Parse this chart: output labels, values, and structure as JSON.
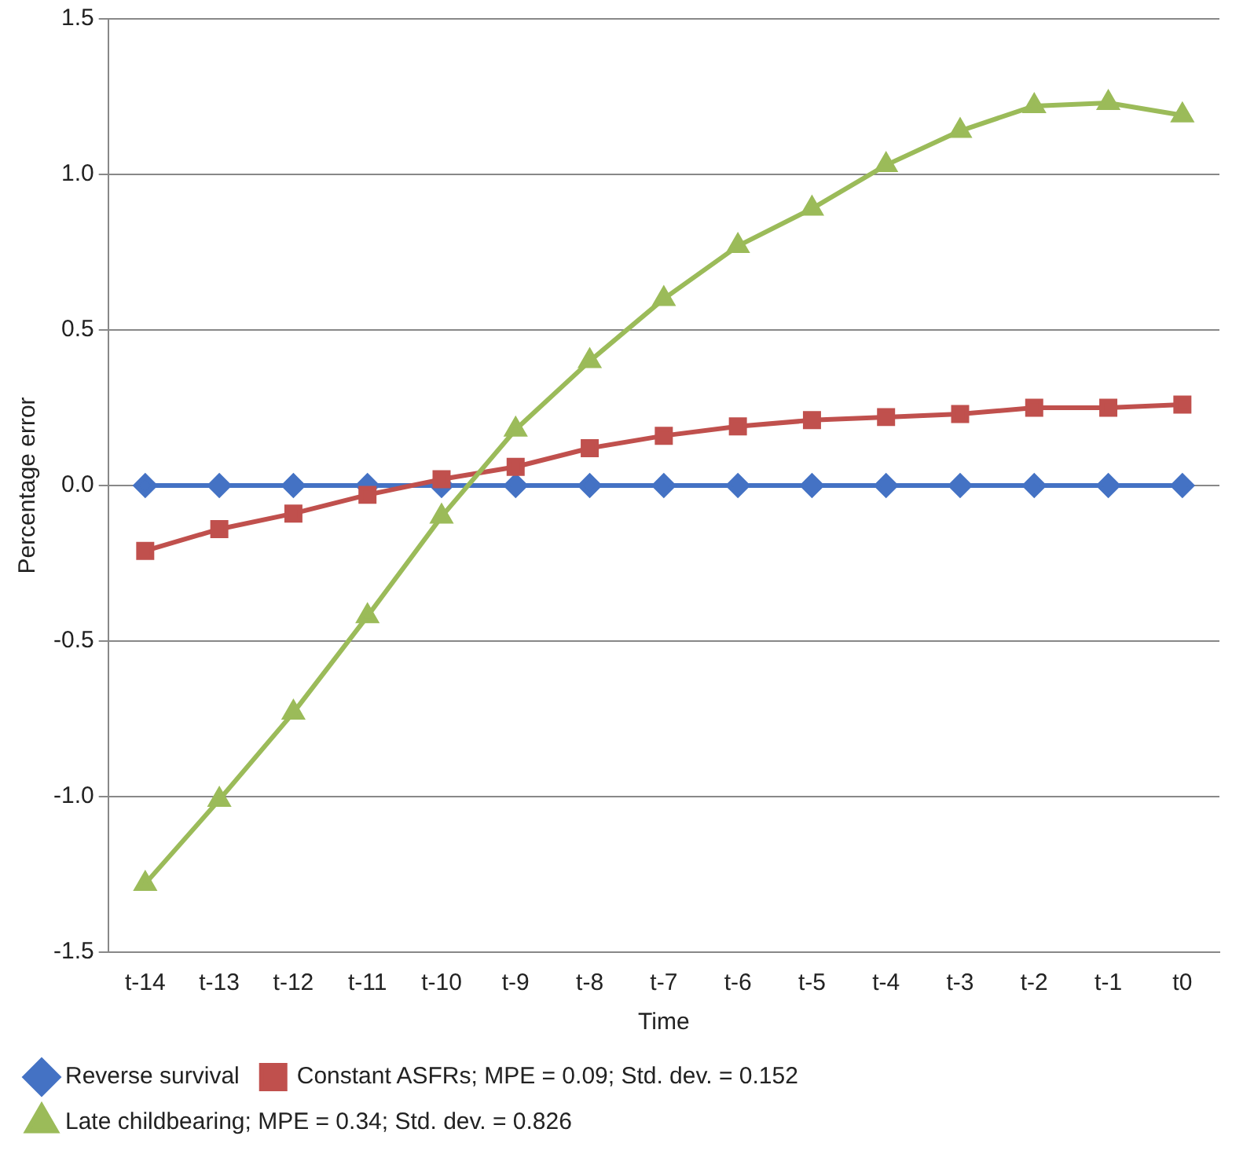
{
  "chart_data": {
    "type": "line",
    "xlabel": "Time",
    "ylabel": "Percentage error",
    "categories": [
      "t-14",
      "t-13",
      "t-12",
      "t-11",
      "t-10",
      "t-9",
      "t-8",
      "t-7",
      "t-6",
      "t-5",
      "t-4",
      "t-3",
      "t-2",
      "t-1",
      "t0"
    ],
    "ylim": [
      -1.5,
      1.5
    ],
    "yticks": [
      {
        "value": -1.5,
        "label": "-1.5"
      },
      {
        "value": -1,
        "label": "-1.0"
      },
      {
        "value": -0.5,
        "label": "-0.5"
      },
      {
        "value": 0,
        "label": "0.0"
      },
      {
        "value": 0.5,
        "label": "0.5"
      },
      {
        "value": 1,
        "label": "1.0"
      },
      {
        "value": 1.5,
        "label": "1.5"
      }
    ],
    "grid": "y",
    "legend": "bottom",
    "series": [
      {
        "name": "Reverse survival",
        "color": "#4472c4",
        "marker": "diamond",
        "values": [
          0,
          0,
          0,
          0,
          0,
          0,
          0,
          0,
          0,
          0,
          0,
          0,
          0,
          0,
          0
        ]
      },
      {
        "name": "Constant ASFRs; MPE = 0.09; Std. dev. = 0.152",
        "color": "#c0504d",
        "marker": "square",
        "values": [
          -0.21,
          -0.14,
          -0.09,
          -0.03,
          0.02,
          0.06,
          0.12,
          0.16,
          0.19,
          0.21,
          0.22,
          0.23,
          0.25,
          0.25,
          0.26
        ]
      },
      {
        "name": "Late childbearing; MPE = 0.34; Std. dev. = 0.826",
        "color": "#9bbb59",
        "marker": "triangle",
        "values": [
          -1.28,
          -1.01,
          -0.73,
          -0.42,
          -0.1,
          0.18,
          0.4,
          0.6,
          0.77,
          0.89,
          1.03,
          1.14,
          1.22,
          1.23,
          1.19
        ]
      }
    ]
  }
}
